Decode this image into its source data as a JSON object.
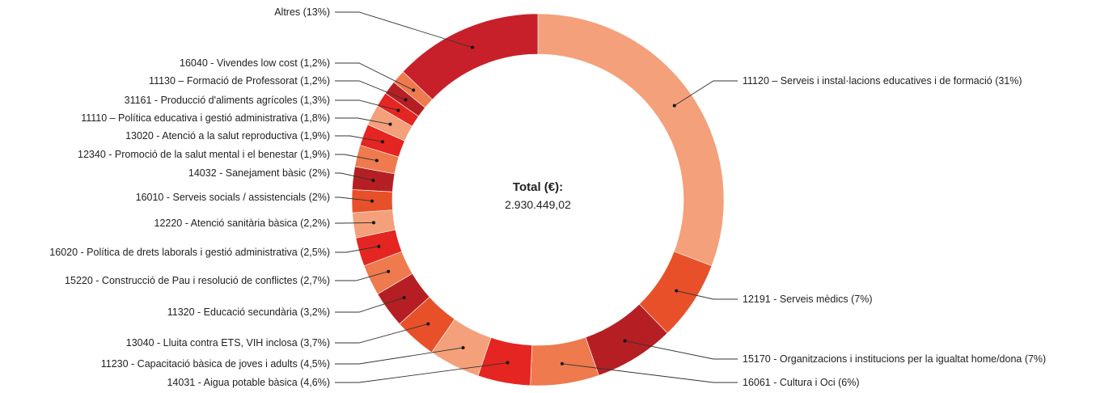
{
  "chart_data": {
    "type": "pie",
    "center": {
      "title": "Total (€):",
      "value": "2.930.449,02"
    },
    "slices": [
      {
        "label": "11120 – Serveis i instal·lacions educatives i de formació (31%)",
        "code": "11120",
        "name": "Serveis i instal·lacions educatives i de formació",
        "pct": "31%",
        "value": 31,
        "color": "#f4a07a"
      },
      {
        "label": "12191 - Serveis mèdics (7%)",
        "code": "12191",
        "name": "Serveis mèdics",
        "pct": "7%",
        "value": 7,
        "color": "#e8502a"
      },
      {
        "label": "15170 - Organitzacions i institucions per la igualtat home/dona (7%)",
        "code": "15170",
        "name": "Organitzacions i institucions per la igualtat home/dona",
        "pct": "7%",
        "value": 7,
        "color": "#b51f23"
      },
      {
        "label": "16061 - Cultura i Oci (6%)",
        "code": "16061",
        "name": "Cultura i Oci",
        "pct": "6%",
        "value": 6,
        "color": "#ee7a4e"
      },
      {
        "label": "14031 - Aigua potable bàsica (4,6%)",
        "code": "14031",
        "name": "Aigua potable bàsica",
        "pct": "4,6%",
        "value": 4.6,
        "color": "#e52521"
      },
      {
        "label": "11230 - Capacitació bàsica de joves i adults (4,5%)",
        "code": "11230",
        "name": "Capacitació bàsica de joves i adults",
        "pct": "4,5%",
        "value": 4.5,
        "color": "#f4a07a"
      },
      {
        "label": "13040 - Lluita contra ETS, VIH inclosa (3,7%)",
        "code": "13040",
        "name": "Lluita contra ETS, VIH inclosa",
        "pct": "3,7%",
        "value": 3.7,
        "color": "#e8502a"
      },
      {
        "label": "11320 - Educació secundària (3,2%)",
        "code": "11320",
        "name": "Educació secundària",
        "pct": "3,2%",
        "value": 3.2,
        "color": "#b51f23"
      },
      {
        "label": "15220 - Construcció de Pau i resolució de conflictes (2,7%)",
        "code": "15220",
        "name": "Construcció de Pau i resolució de conflictes",
        "pct": "2,7%",
        "value": 2.7,
        "color": "#ee7a4e"
      },
      {
        "label": "16020 - Política de drets laborals i gestió administrativa (2,5%)",
        "code": "16020",
        "name": "Política de drets laborals i gestió administrativa",
        "pct": "2,5%",
        "value": 2.5,
        "color": "#e52521"
      },
      {
        "label": "12220 - Atenció sanitària bàsica (2,2%)",
        "code": "12220",
        "name": "Atenció sanitària bàsica",
        "pct": "2,2%",
        "value": 2.2,
        "color": "#f4a07a"
      },
      {
        "label": "16010 - Serveis socials / assistencials (2%)",
        "code": "16010",
        "name": "Serveis socials / assistencials",
        "pct": "2%",
        "value": 2,
        "color": "#e8502a"
      },
      {
        "label": "14032 - Sanejament bàsic (2%)",
        "code": "14032",
        "name": "Sanejament bàsic",
        "pct": "2%",
        "value": 2,
        "color": "#b51f23"
      },
      {
        "label": "12340 - Promoció de la salut mental i el benestar (1,9%)",
        "code": "12340",
        "name": "Promoció de la salut mental i el benestar",
        "pct": "1,9%",
        "value": 1.9,
        "color": "#ee7a4e"
      },
      {
        "label": "13020 - Atenció a la salut reproductiva (1,9%)",
        "code": "13020",
        "name": "Atenció a la salut reproductiva",
        "pct": "1,9%",
        "value": 1.9,
        "color": "#e52521"
      },
      {
        "label": "11110 – Política educativa i gestió administrativa (1,8%)",
        "code": "11110",
        "name": "Política educativa i gestió administrativa",
        "pct": "1,8%",
        "value": 1.8,
        "color": "#f4a07a"
      },
      {
        "label": "31161 - Producció d'aliments agrícoles (1,3%)",
        "code": "31161",
        "name": "Producció d'aliments agrícoles",
        "pct": "1,3%",
        "value": 1.3,
        "color": "#e52521"
      },
      {
        "label": "11130 – Formació de Professorat (1,2%)",
        "code": "11130",
        "name": "Formació de Professorat",
        "pct": "1,2%",
        "value": 1.2,
        "color": "#b51f23"
      },
      {
        "label": "16040 - Vivendes low cost (1,2%)",
        "code": "16040",
        "name": "Vivendes low cost",
        "pct": "1,2%",
        "value": 1.2,
        "color": "#ee7a4e"
      },
      {
        "label": "Altres (13%)",
        "code": "",
        "name": "Altres",
        "pct": "13%",
        "value": 13,
        "color": "#c8202a"
      }
    ]
  }
}
